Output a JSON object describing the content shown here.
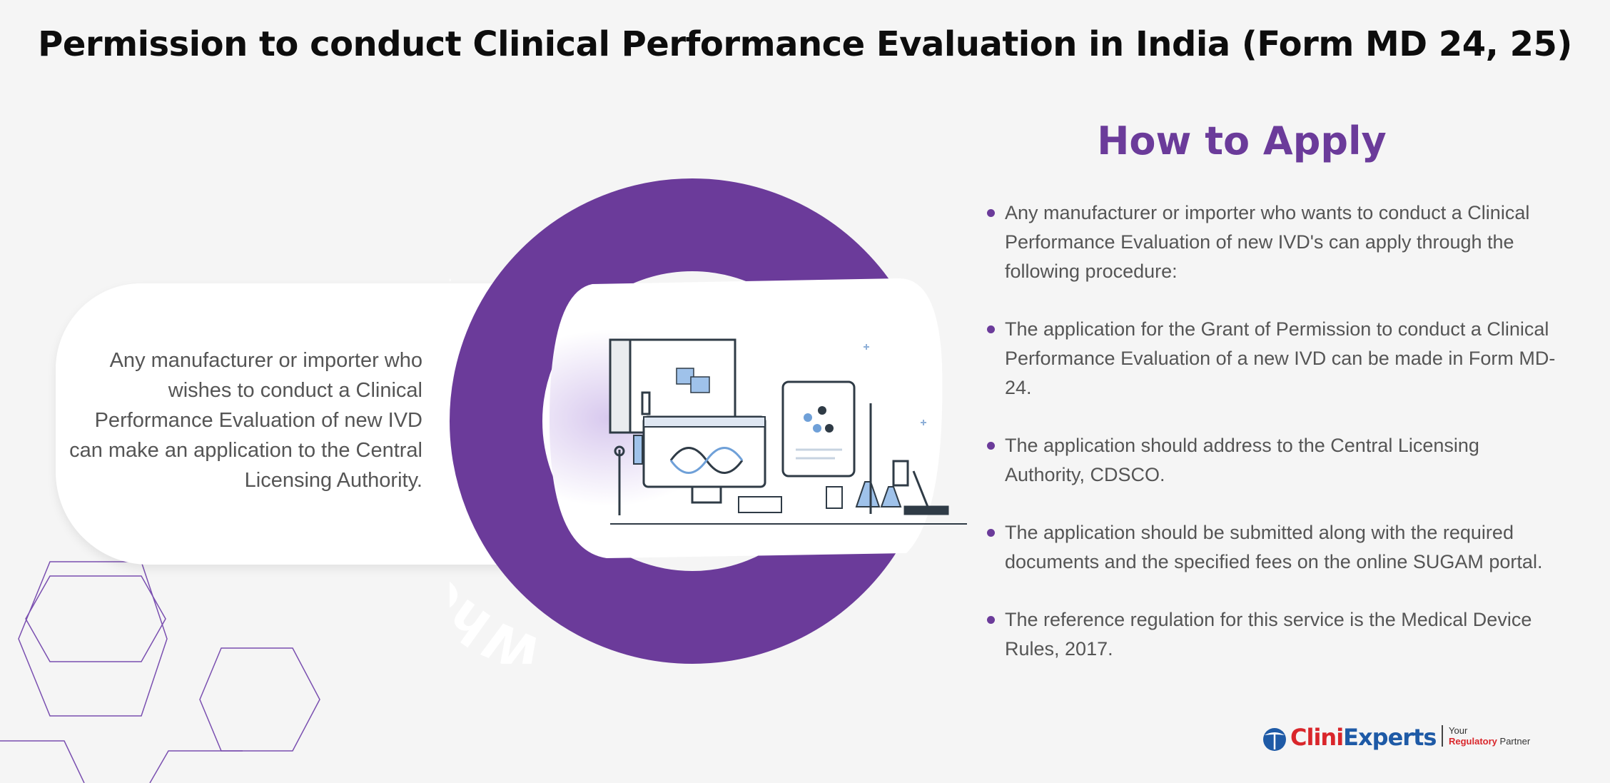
{
  "title": "Permission to conduct Clinical Performance Evaluation in India (Form MD 24, 25)",
  "who_can_apply": {
    "ring_label": "Who can Apply?",
    "description": "Any manufacturer or importer who wishes to conduct a Clinical Performance Evaluation of new IVD can make an application to the Central Licensing Authority."
  },
  "how_to_apply": {
    "heading": "How to Apply",
    "items": [
      {
        "text": "Any manufacturer or importer who wants to conduct a Clinical Performance Evaluation of new IVD's can apply through the following procedure:"
      },
      {
        "text": "The application for the Grant of Permission to conduct a Clinical Performance Evaluation of a new IVD can be made in Form MD-24."
      },
      {
        "text": "The application should address to the Central Licensing Authority, CDSCO."
      },
      {
        "text": "The application should be submitted along with the required documents and the specified fees on the online SUGAM portal."
      },
      {
        "text": "The reference regulation for this service is the Medical Device Rules, 2017."
      }
    ]
  },
  "logo": {
    "brand_part1": "Clini",
    "brand_part2": "Experts",
    "tagline_line1": "Your",
    "tagline_red": "Regulatory",
    "tagline_rest": "Partner"
  },
  "colors": {
    "accent_purple": "#6b3b9a",
    "text_gray": "#555555",
    "logo_red": "#d9262b",
    "logo_blue": "#1e5aa6"
  }
}
